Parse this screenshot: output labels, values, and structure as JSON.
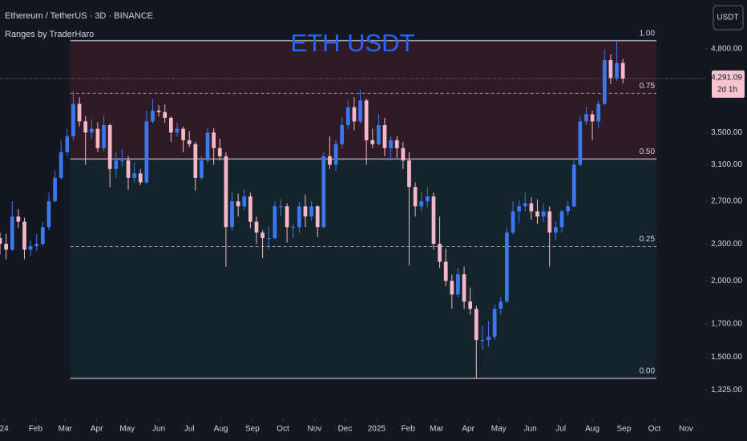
{
  "chart_data": {
    "type": "candlestick",
    "symbol_info": "Ethereum / TetherUS · 3D · BINANCE",
    "indicator": "Ranges by TraderHaro",
    "title": "ETH USDT",
    "currency": "USDT",
    "log_scale": true,
    "up_color": "#3b78f0",
    "down_color": "#f5b8c6",
    "title_color": "#2962ff",
    "x": [
      "2023-12-28",
      "2024-01-03",
      "2024-01-09",
      "2024-01-15",
      "2024-01-21",
      "2024-01-27",
      "2024-02-02",
      "2024-02-08",
      "2024-02-14",
      "2024-02-20",
      "2024-02-26",
      "2024-03-03",
      "2024-03-09",
      "2024-03-15",
      "2024-03-21",
      "2024-03-27",
      "2024-04-02",
      "2024-04-08",
      "2024-04-14",
      "2024-04-20",
      "2024-04-26",
      "2024-05-02",
      "2024-05-08",
      "2024-05-14",
      "2024-05-20",
      "2024-05-26",
      "2024-06-01",
      "2024-06-07",
      "2024-06-13",
      "2024-06-19",
      "2024-06-25",
      "2024-07-01",
      "2024-07-07",
      "2024-07-13",
      "2024-07-19",
      "2024-07-25",
      "2024-07-31",
      "2024-08-06",
      "2024-08-12",
      "2024-08-18",
      "2024-08-24",
      "2024-08-30",
      "2024-09-05",
      "2024-09-11",
      "2024-09-17",
      "2024-09-23",
      "2024-09-29",
      "2024-10-05",
      "2024-10-11",
      "2024-10-17",
      "2024-10-23",
      "2024-10-29",
      "2024-11-04",
      "2024-11-10",
      "2024-11-16",
      "2024-11-22",
      "2024-11-28",
      "2024-12-04",
      "2024-12-10",
      "2024-12-16",
      "2024-12-22",
      "2024-12-28",
      "2025-01-03",
      "2025-01-09",
      "2025-01-15",
      "2025-01-21",
      "2025-01-27",
      "2025-02-02",
      "2025-02-08",
      "2025-02-14",
      "2025-02-20",
      "2025-02-26",
      "2025-03-04",
      "2025-03-10",
      "2025-03-16",
      "2025-03-22",
      "2025-03-28",
      "2025-04-03",
      "2025-04-09",
      "2025-04-15",
      "2025-04-21",
      "2025-04-27",
      "2025-05-03",
      "2025-05-09",
      "2025-05-15",
      "2025-05-21",
      "2025-05-27",
      "2025-06-02",
      "2025-06-08",
      "2025-06-14",
      "2025-06-20",
      "2025-06-26",
      "2025-07-02",
      "2025-07-08",
      "2025-07-14",
      "2025-07-20",
      "2025-07-26",
      "2025-08-01",
      "2025-08-07",
      "2025-08-13",
      "2025-08-19",
      "2025-08-25",
      "2025-08-31"
    ],
    "open": [
      2350,
      2300,
      2250,
      2550,
      2500,
      2250,
      2280,
      2300,
      2450,
      2700,
      2950,
      3250,
      3450,
      3900,
      3650,
      3500,
      3550,
      3300,
      3600,
      3050,
      3150,
      3150,
      2950,
      3000,
      2900,
      3650,
      3800,
      3780,
      3700,
      3500,
      3550,
      3400,
      3350,
      2950,
      3150,
      3500,
      3300,
      3200,
      2450,
      2700,
      2650,
      2750,
      2500,
      2400,
      2350,
      2350,
      2650,
      2650,
      2450,
      2450,
      2650,
      2550,
      2650,
      2450,
      3200,
      3100,
      3350,
      3600,
      3850,
      3650,
      3950,
      3400,
      3350,
      3600,
      3300,
      3400,
      3300,
      3150,
      2850,
      2650,
      2700,
      2750,
      2300,
      2150,
      2000,
      1900,
      2050,
      1850,
      1800,
      1600,
      1600,
      1620,
      1800,
      1850,
      2400,
      2600,
      2650,
      2680,
      2600,
      2550,
      2600,
      2400,
      2450,
      2600,
      2650,
      3100,
      3650,
      3750,
      3650,
      3900,
      4600,
      4300,
      4550
    ],
    "high": [
      2400,
      2390,
      2700,
      2620,
      2540,
      2330,
      2390,
      2500,
      2790,
      3030,
      3400,
      3550,
      4090,
      4000,
      3720,
      3680,
      3640,
      3730,
      3620,
      3250,
      3290,
      3200,
      3130,
      3050,
      3800,
      3970,
      3880,
      3890,
      3720,
      3630,
      3580,
      3520,
      3380,
      3200,
      3560,
      3560,
      3420,
      3250,
      2800,
      2780,
      2820,
      2790,
      2550,
      2420,
      2450,
      2700,
      2720,
      2680,
      2480,
      2690,
      2770,
      2700,
      2660,
      3250,
      3450,
      3400,
      3700,
      3950,
      4000,
      4110,
      3980,
      3550,
      3750,
      3700,
      3460,
      3450,
      3380,
      3250,
      2900,
      2790,
      2850,
      2790,
      2550,
      2260,
      2050,
      2100,
      2110,
      1950,
      1820,
      1690,
      1720,
      1830,
      1880,
      2450,
      2700,
      2720,
      2790,
      2740,
      2720,
      2680,
      2650,
      2500,
      2620,
      2700,
      3150,
      3720,
      3860,
      3800,
      3950,
      4790,
      4700,
      4950,
      4620
    ],
    "low": [
      2210,
      2170,
      2240,
      2440,
      2170,
      2200,
      2240,
      2280,
      2420,
      2690,
      2930,
      3200,
      3400,
      3580,
      3100,
      3420,
      3250,
      3260,
      2850,
      2950,
      3080,
      2820,
      2900,
      2870,
      2880,
      3620,
      3720,
      3630,
      3380,
      3450,
      3250,
      3310,
      2810,
      2930,
      3120,
      3100,
      3150,
      2110,
      2420,
      2550,
      2610,
      2440,
      2300,
      2180,
      2250,
      2340,
      2550,
      2310,
      2350,
      2400,
      2450,
      2510,
      2360,
      2440,
      3050,
      3030,
      3300,
      3550,
      3530,
      3620,
      3100,
      3300,
      3330,
      3200,
      3150,
      3180,
      3050,
      2120,
      2550,
      2600,
      2640,
      2250,
      2100,
      1960,
      1800,
      1880,
      1800,
      1760,
      1385,
      1540,
      1560,
      1600,
      1760,
      1840,
      2380,
      2490,
      2600,
      2520,
      2480,
      2500,
      2110,
      2330,
      2400,
      2560,
      2640,
      3080,
      3600,
      3400,
      3560,
      3880,
      4200,
      4250,
      4210
    ],
    "close": [
      2300,
      2250,
      2550,
      2500,
      2250,
      2280,
      2300,
      2450,
      2700,
      2950,
      3250,
      3450,
      3900,
      3650,
      3500,
      3550,
      3300,
      3600,
      3050,
      3150,
      3150,
      2950,
      3000,
      2900,
      3650,
      3800,
      3780,
      3700,
      3500,
      3550,
      3400,
      3350,
      2950,
      3150,
      3500,
      3300,
      3200,
      2450,
      2700,
      2650,
      2750,
      2500,
      2400,
      2350,
      2350,
      2650,
      2650,
      2450,
      2450,
      2650,
      2550,
      2650,
      2450,
      3200,
      3100,
      3350,
      3600,
      3850,
      3650,
      3950,
      3400,
      3350,
      3600,
      3300,
      3400,
      3300,
      3150,
      2850,
      2650,
      2700,
      2750,
      2300,
      2150,
      2000,
      1900,
      2050,
      1850,
      1800,
      1600,
      1600,
      1620,
      1800,
      1850,
      2400,
      2600,
      2650,
      2680,
      2600,
      2550,
      2600,
      2400,
      2450,
      2600,
      2650,
      3100,
      3650,
      3750,
      3650,
      3900,
      4600,
      4300,
      4550,
      4291.09
    ],
    "last_price": {
      "value": 4291.09,
      "label": "4,291.09",
      "countdown": "2d 1h"
    },
    "xlim": [
      "2023-12-28",
      "2025-11-20"
    ],
    "xticks": [
      {
        "value": "2024-01-01",
        "label": "24"
      },
      {
        "value": "2024-02-01",
        "label": "Feb"
      },
      {
        "value": "2024-03-01",
        "label": "Mar"
      },
      {
        "value": "2024-04-01",
        "label": "Apr"
      },
      {
        "value": "2024-05-01",
        "label": "May"
      },
      {
        "value": "2024-06-01",
        "label": "Jun"
      },
      {
        "value": "2024-07-01",
        "label": "Jul"
      },
      {
        "value": "2024-08-01",
        "label": "Aug"
      },
      {
        "value": "2024-09-01",
        "label": "Sep"
      },
      {
        "value": "2024-10-01",
        "label": "Oct"
      },
      {
        "value": "2024-11-01",
        "label": "Nov"
      },
      {
        "value": "2024-12-01",
        "label": "Dec"
      },
      {
        "value": "2025-01-01",
        "label": "2025"
      },
      {
        "value": "2025-02-01",
        "label": "Feb"
      },
      {
        "value": "2025-03-01",
        "label": "Mar"
      },
      {
        "value": "2025-04-01",
        "label": "Apr"
      },
      {
        "value": "2025-05-01",
        "label": "May"
      },
      {
        "value": "2025-06-01",
        "label": "Jun"
      },
      {
        "value": "2025-07-01",
        "label": "Jul"
      },
      {
        "value": "2025-08-01",
        "label": "Aug"
      },
      {
        "value": "2025-09-01",
        "label": "Sep"
      },
      {
        "value": "2025-10-01",
        "label": "Oct"
      },
      {
        "value": "2025-11-01",
        "label": "Nov"
      }
    ],
    "ylim": [
      1190,
      5770
    ],
    "yticks": [
      {
        "value": 4800,
        "label": "4,800.00"
      },
      {
        "value": 3500,
        "label": "3,500.00"
      },
      {
        "value": 3100,
        "label": "3,100.00"
      },
      {
        "value": 2700,
        "label": "2,700.00"
      },
      {
        "value": 2300,
        "label": "2,300.00"
      },
      {
        "value": 2000,
        "label": "2,000.00"
      },
      {
        "value": 1700,
        "label": "1,700.00"
      },
      {
        "value": 1500,
        "label": "1,500.00"
      },
      {
        "value": 1325,
        "label": "1,325.00"
      }
    ],
    "range": {
      "start": "2024-03-06",
      "end": "2025-10-03",
      "low": 1385,
      "high": 4950,
      "upper_color": "rgba(242,54,69,0.13)",
      "lower_color": "rgba(38,166,154,0.09)",
      "levels": [
        {
          "value": 0,
          "label": "0.00",
          "dashed": false
        },
        {
          "value": 0.25,
          "label": "0.25",
          "dashed": true
        },
        {
          "value": 0.5,
          "label": "0.50",
          "dashed": false
        },
        {
          "value": 0.75,
          "label": "0.75",
          "dashed": true
        },
        {
          "value": 1,
          "label": "1.00",
          "dashed": false
        }
      ]
    }
  }
}
